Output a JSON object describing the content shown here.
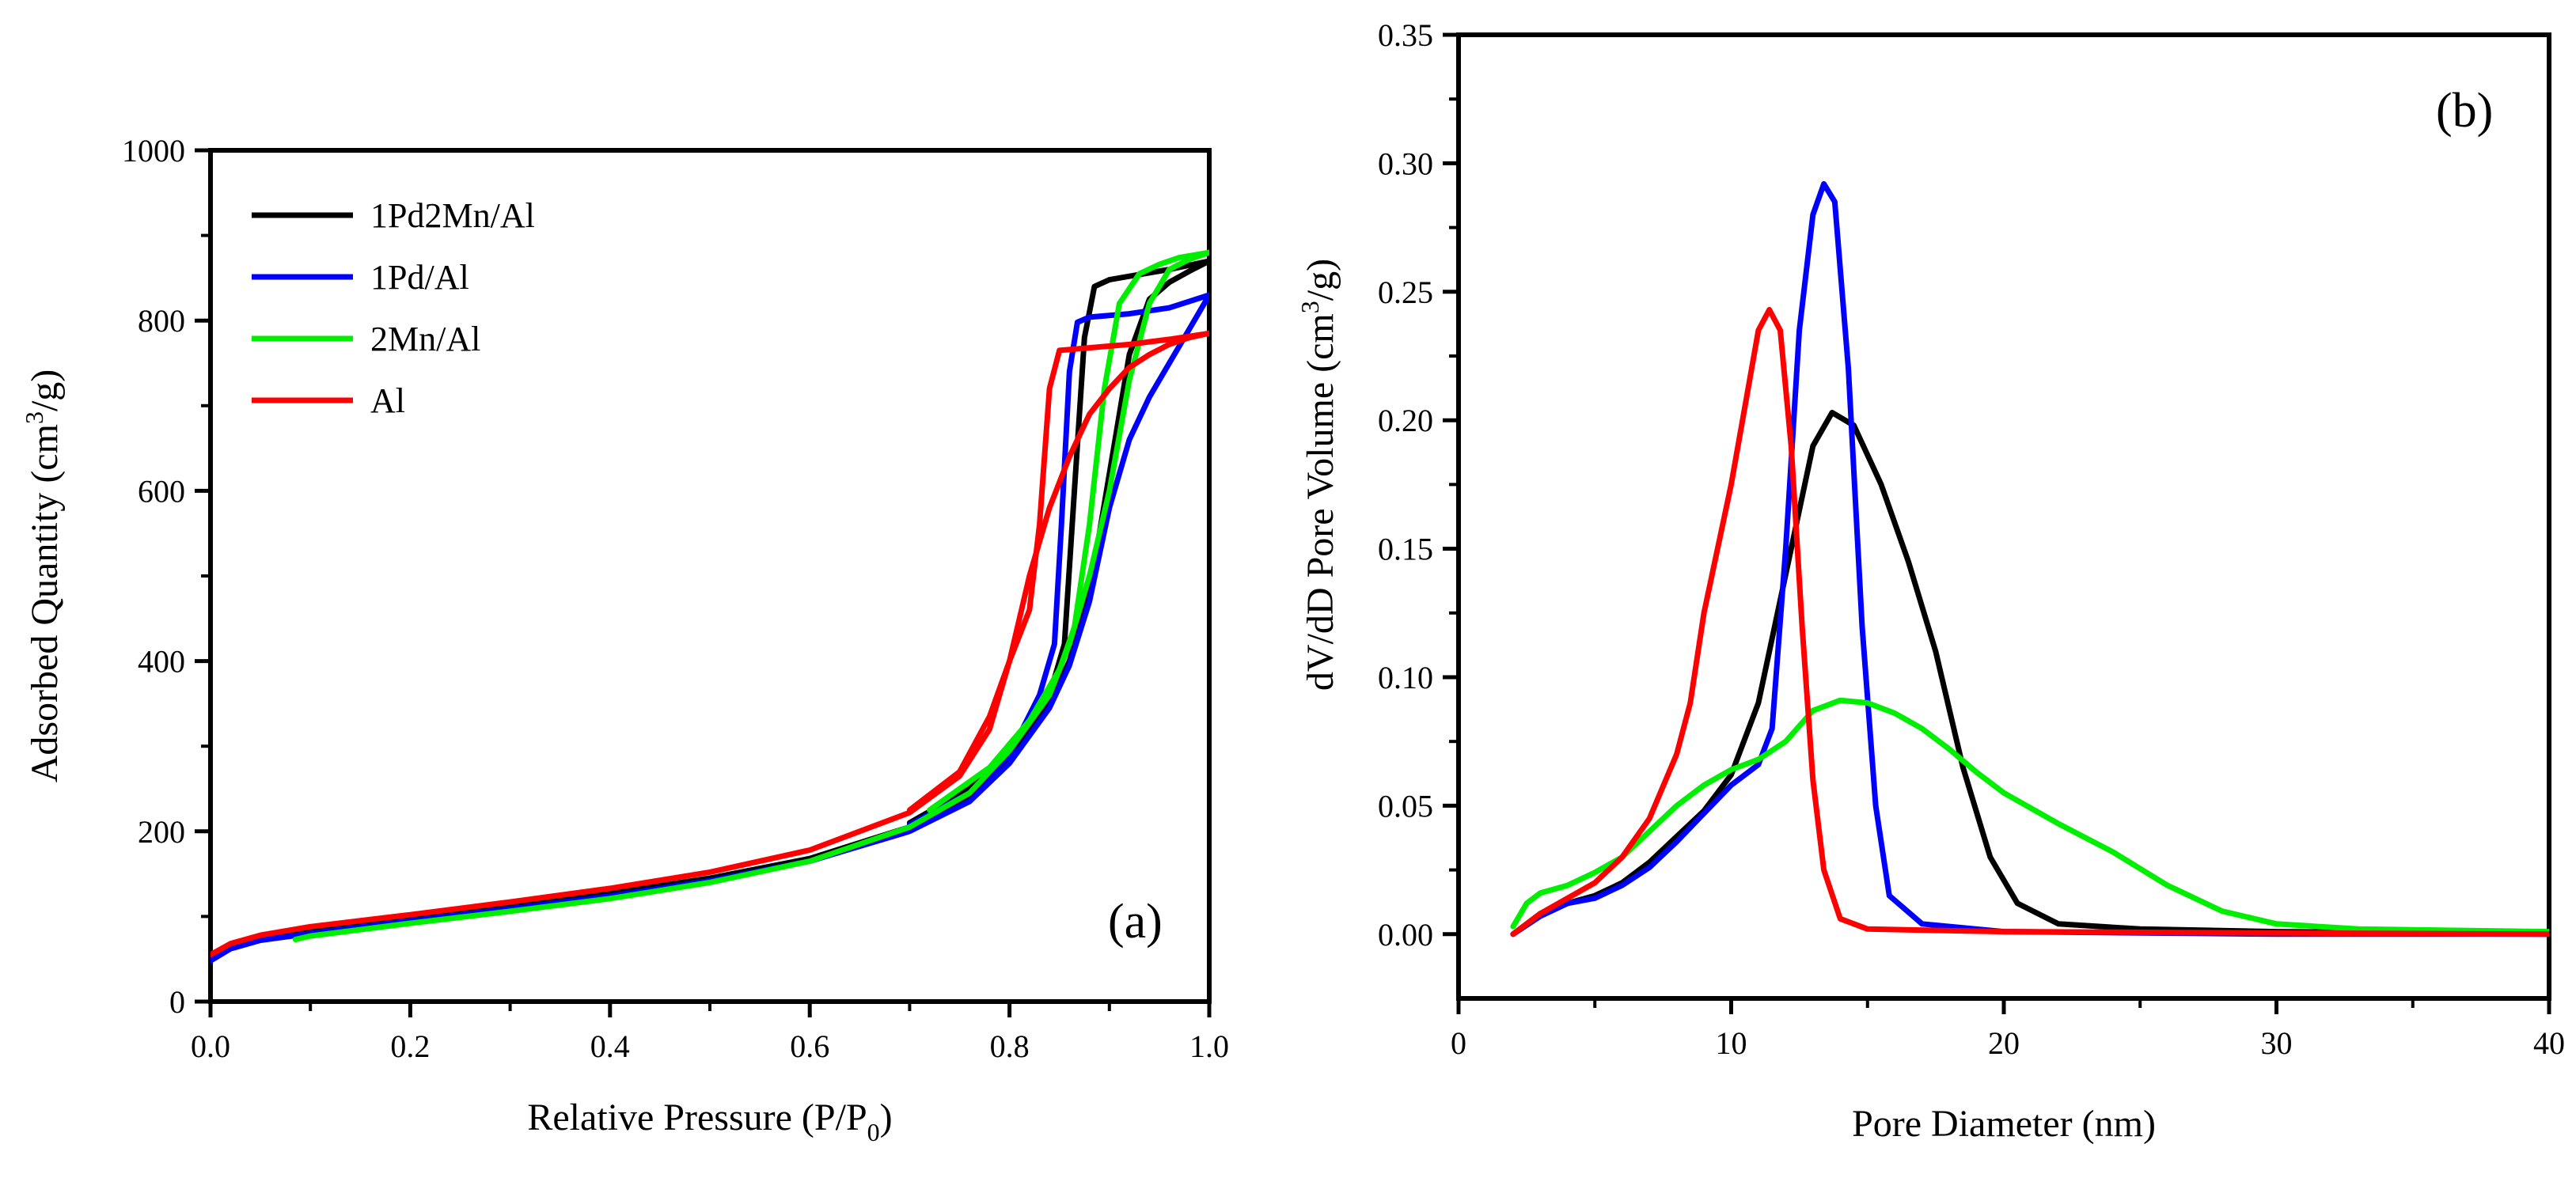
{
  "chart_data": [
    {
      "type": "line",
      "panel_label": "(a)",
      "xlabel_main": "Relative Pressure (P/P",
      "xlabel_sub": "0",
      "xlabel_tail": ")",
      "ylabel_main": "Adsorbed Quantity (cm",
      "ylabel_sup": "3",
      "ylabel_tail": "/g)",
      "xlim": [
        0,
        1.0
      ],
      "ylim": [
        0,
        1000
      ],
      "x_ticks": [
        "0.0",
        "0.2",
        "0.4",
        "0.6",
        "0.8",
        "1.0"
      ],
      "y_ticks": [
        "0",
        "200",
        "400",
        "600",
        "800",
        "1000"
      ],
      "legend_position": "top-left",
      "series": [
        {
          "name": "1Pd2Mn/Al",
          "color": "#000000",
          "adsorption": [
            [
              0.0,
              50
            ],
            [
              0.02,
              65
            ],
            [
              0.05,
              75
            ],
            [
              0.1,
              84
            ],
            [
              0.2,
              98
            ],
            [
              0.3,
              112
            ],
            [
              0.4,
              127
            ],
            [
              0.5,
              145
            ],
            [
              0.6,
              168
            ],
            [
              0.7,
              205
            ],
            [
              0.76,
              240
            ],
            [
              0.8,
              285
            ],
            [
              0.84,
              350
            ],
            [
              0.86,
              400
            ],
            [
              0.88,
              480
            ],
            [
              0.9,
              620
            ],
            [
              0.92,
              760
            ],
            [
              0.94,
              825
            ],
            [
              0.96,
              845
            ],
            [
              0.98,
              858
            ],
            [
              1.0,
              870
            ]
          ],
          "desorption": [
            [
              1.0,
              870
            ],
            [
              0.96,
              860
            ],
            [
              0.92,
              852
            ],
            [
              0.9,
              848
            ],
            [
              0.885,
              840
            ],
            [
              0.875,
              780
            ],
            [
              0.865,
              600
            ],
            [
              0.855,
              420
            ],
            [
              0.84,
              360
            ],
            [
              0.8,
              290
            ],
            [
              0.76,
              250
            ],
            [
              0.7,
              210
            ]
          ]
        },
        {
          "name": "1Pd/Al",
          "color": "#0000ff",
          "adsorption": [
            [
              0.0,
              48
            ],
            [
              0.02,
              62
            ],
            [
              0.05,
              72
            ],
            [
              0.1,
              80
            ],
            [
              0.2,
              95
            ],
            [
              0.3,
              109
            ],
            [
              0.4,
              124
            ],
            [
              0.5,
              142
            ],
            [
              0.6,
              165
            ],
            [
              0.7,
              200
            ],
            [
              0.76,
              235
            ],
            [
              0.8,
              280
            ],
            [
              0.84,
              345
            ],
            [
              0.86,
              395
            ],
            [
              0.88,
              470
            ],
            [
              0.9,
              580
            ],
            [
              0.92,
              660
            ],
            [
              0.94,
              710
            ],
            [
              0.96,
              750
            ],
            [
              0.98,
              790
            ],
            [
              1.0,
              830
            ]
          ],
          "desorption": [
            [
              1.0,
              830
            ],
            [
              0.96,
              815
            ],
            [
              0.92,
              808
            ],
            [
              0.88,
              804
            ],
            [
              0.868,
              798
            ],
            [
              0.86,
              740
            ],
            [
              0.852,
              560
            ],
            [
              0.845,
              420
            ],
            [
              0.83,
              360
            ],
            [
              0.8,
              290
            ],
            [
              0.76,
              245
            ],
            [
              0.7,
              208
            ]
          ]
        },
        {
          "name": "2Mn/Al",
          "color": "#00ee00",
          "adsorption": [
            [
              0.085,
              73
            ],
            [
              0.1,
              77
            ],
            [
              0.2,
              92
            ],
            [
              0.3,
              106
            ],
            [
              0.4,
              121
            ],
            [
              0.5,
              140
            ],
            [
              0.6,
              165
            ],
            [
              0.7,
              205
            ],
            [
              0.76,
              245
            ],
            [
              0.8,
              295
            ],
            [
              0.84,
              360
            ],
            [
              0.86,
              420
            ],
            [
              0.88,
              500
            ],
            [
              0.9,
              600
            ],
            [
              0.92,
              730
            ],
            [
              0.94,
              820
            ],
            [
              0.96,
              860
            ],
            [
              0.98,
              872
            ],
            [
              1.0,
              880
            ]
          ],
          "desorption": [
            [
              1.0,
              880
            ],
            [
              0.97,
              874
            ],
            [
              0.95,
              866
            ],
            [
              0.93,
              855
            ],
            [
              0.91,
              820
            ],
            [
              0.895,
              720
            ],
            [
              0.88,
              560
            ],
            [
              0.865,
              440
            ],
            [
              0.85,
              390
            ],
            [
              0.82,
              330
            ],
            [
              0.78,
              275
            ],
            [
              0.72,
              225
            ]
          ]
        },
        {
          "name": "Al",
          "color": "#ff0000",
          "adsorption": [
            [
              0.0,
              55
            ],
            [
              0.02,
              68
            ],
            [
              0.05,
              78
            ],
            [
              0.1,
              88
            ],
            [
              0.2,
              102
            ],
            [
              0.3,
              117
            ],
            [
              0.4,
              133
            ],
            [
              0.5,
              152
            ],
            [
              0.6,
              178
            ],
            [
              0.7,
              222
            ],
            [
              0.75,
              265
            ],
            [
              0.78,
              320
            ],
            [
              0.8,
              400
            ],
            [
              0.82,
              500
            ],
            [
              0.84,
              580
            ],
            [
              0.86,
              640
            ],
            [
              0.88,
              690
            ],
            [
              0.9,
              720
            ],
            [
              0.92,
              745
            ],
            [
              0.94,
              760
            ],
            [
              0.96,
              772
            ],
            [
              0.98,
              780
            ],
            [
              1.0,
              785
            ]
          ],
          "desorption": [
            [
              1.0,
              785
            ],
            [
              0.96,
              778
            ],
            [
              0.92,
              772
            ],
            [
              0.88,
              768
            ],
            [
              0.86,
              766
            ],
            [
              0.85,
              765
            ],
            [
              0.84,
              720
            ],
            [
              0.83,
              560
            ],
            [
              0.82,
              460
            ],
            [
              0.8,
              400
            ],
            [
              0.78,
              335
            ],
            [
              0.75,
              270
            ],
            [
              0.7,
              225
            ]
          ]
        }
      ]
    },
    {
      "type": "line",
      "panel_label": "(b)",
      "xlabel": "Pore Diameter (nm)",
      "ylabel_main": "dV/dD Pore Volume (cm",
      "ylabel_sup": "3",
      "ylabel_tail": "/g)",
      "xlim": [
        0,
        40
      ],
      "ylim": [
        -0.025,
        0.35
      ],
      "x_ticks": [
        "0",
        "10",
        "20",
        "30",
        "40"
      ],
      "y_ticks": [
        "0.00",
        "0.05",
        "0.10",
        "0.15",
        "0.20",
        "0.25",
        "0.30",
        "0.35"
      ],
      "series": [
        {
          "name": "1Pd2Mn/Al",
          "color": "#000000",
          "points": [
            [
              2,
              0.0
            ],
            [
              3,
              0.008
            ],
            [
              4,
              0.012
            ],
            [
              5,
              0.015
            ],
            [
              6,
              0.02
            ],
            [
              7,
              0.028
            ],
            [
              8,
              0.038
            ],
            [
              9,
              0.048
            ],
            [
              10,
              0.062
            ],
            [
              11,
              0.09
            ],
            [
              12,
              0.14
            ],
            [
              13,
              0.19
            ],
            [
              13.7,
              0.203
            ],
            [
              14.5,
              0.198
            ],
            [
              15.5,
              0.175
            ],
            [
              16.5,
              0.145
            ],
            [
              17.5,
              0.11
            ],
            [
              18.5,
              0.065
            ],
            [
              19.5,
              0.03
            ],
            [
              20.5,
              0.012
            ],
            [
              22,
              0.004
            ],
            [
              25,
              0.002
            ],
            [
              30,
              0.001
            ],
            [
              40,
              0.0
            ]
          ]
        },
        {
          "name": "1Pd/Al",
          "color": "#0000ff",
          "points": [
            [
              2,
              0.0
            ],
            [
              3,
              0.007
            ],
            [
              4,
              0.012
            ],
            [
              5,
              0.014
            ],
            [
              6,
              0.019
            ],
            [
              7,
              0.026
            ],
            [
              8,
              0.036
            ],
            [
              9,
              0.047
            ],
            [
              10,
              0.058
            ],
            [
              11,
              0.066
            ],
            [
              11.5,
              0.08
            ],
            [
              12,
              0.15
            ],
            [
              12.5,
              0.235
            ],
            [
              13,
              0.28
            ],
            [
              13.4,
              0.292
            ],
            [
              13.8,
              0.285
            ],
            [
              14.3,
              0.22
            ],
            [
              14.8,
              0.12
            ],
            [
              15.3,
              0.05
            ],
            [
              15.8,
              0.015
            ],
            [
              17,
              0.004
            ],
            [
              20,
              0.001
            ],
            [
              30,
              0.0
            ],
            [
              40,
              0.0
            ]
          ]
        },
        {
          "name": "2Mn/Al",
          "color": "#00ee00",
          "points": [
            [
              2,
              0.003
            ],
            [
              2.5,
              0.012
            ],
            [
              3,
              0.016
            ],
            [
              4,
              0.019
            ],
            [
              5,
              0.024
            ],
            [
              6,
              0.03
            ],
            [
              7,
              0.04
            ],
            [
              8,
              0.05
            ],
            [
              9,
              0.058
            ],
            [
              10,
              0.064
            ],
            [
              11,
              0.068
            ],
            [
              12,
              0.075
            ],
            [
              13,
              0.087
            ],
            [
              14,
              0.091
            ],
            [
              15,
              0.09
            ],
            [
              16,
              0.086
            ],
            [
              17,
              0.08
            ],
            [
              18,
              0.072
            ],
            [
              19,
              0.063
            ],
            [
              20,
              0.055
            ],
            [
              22,
              0.043
            ],
            [
              24,
              0.032
            ],
            [
              26,
              0.019
            ],
            [
              28,
              0.009
            ],
            [
              30,
              0.004
            ],
            [
              33,
              0.002
            ],
            [
              40,
              0.001
            ]
          ]
        },
        {
          "name": "Al",
          "color": "#ff0000",
          "points": [
            [
              2,
              0.0
            ],
            [
              3,
              0.008
            ],
            [
              4,
              0.014
            ],
            [
              5,
              0.02
            ],
            [
              6,
              0.03
            ],
            [
              7,
              0.045
            ],
            [
              8,
              0.07
            ],
            [
              8.5,
              0.09
            ],
            [
              9,
              0.125
            ],
            [
              9.5,
              0.15
            ],
            [
              10,
              0.175
            ],
            [
              10.5,
              0.205
            ],
            [
              11,
              0.235
            ],
            [
              11.4,
              0.243
            ],
            [
              11.8,
              0.235
            ],
            [
              12.2,
              0.19
            ],
            [
              12.6,
              0.12
            ],
            [
              13,
              0.06
            ],
            [
              13.4,
              0.025
            ],
            [
              14,
              0.006
            ],
            [
              15,
              0.002
            ],
            [
              20,
              0.001
            ],
            [
              40,
              0.0
            ]
          ]
        }
      ]
    }
  ]
}
